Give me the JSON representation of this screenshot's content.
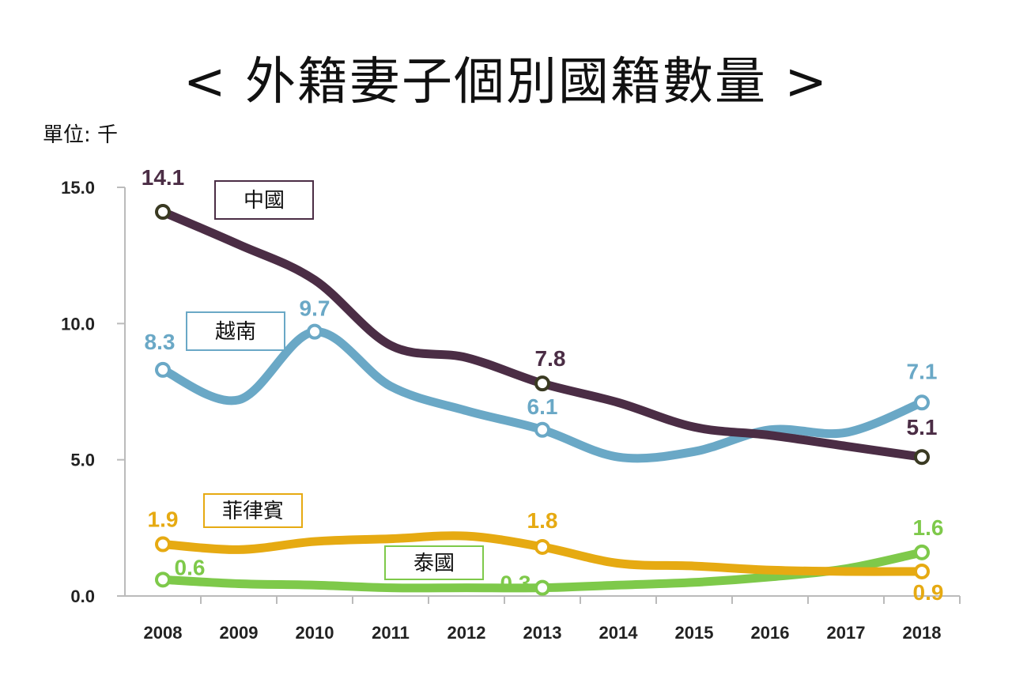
{
  "title": "<  外籍妻子個別國籍數量  >",
  "unit_label": "單位: 千",
  "chart_data": {
    "type": "line",
    "title": "外籍妻子個別國籍數量",
    "ylabel": "單位: 千",
    "xlabel": "",
    "x": [
      "2008",
      "2009",
      "2010",
      "2011",
      "2012",
      "2013",
      "2014",
      "2015",
      "2016",
      "2017",
      "2018"
    ],
    "ylim": [
      0,
      15
    ],
    "yticks": [
      "0.0",
      "5.0",
      "10.0",
      "15.0"
    ],
    "ytick_values": [
      0,
      5,
      10,
      15
    ],
    "grid": false,
    "series": [
      {
        "name": "中國",
        "color": "#4b2d45",
        "values": [
          14.1,
          12.9,
          11.6,
          9.2,
          8.75,
          7.8,
          7.1,
          6.2,
          5.9,
          5.5,
          5.1
        ],
        "labeled_points": [
          {
            "index": 0,
            "label": "14.1"
          },
          {
            "index": 5,
            "label": "7.8"
          },
          {
            "index": 10,
            "label": "5.1"
          }
        ]
      },
      {
        "name": "越南",
        "color": "#6aa8c6",
        "values": [
          8.3,
          7.2,
          9.7,
          7.7,
          6.8,
          6.1,
          5.1,
          5.3,
          6.1,
          6.0,
          7.1
        ],
        "labeled_points": [
          {
            "index": 0,
            "label": "8.3"
          },
          {
            "index": 2,
            "label": "9.7"
          },
          {
            "index": 5,
            "label": "6.1"
          },
          {
            "index": 10,
            "label": "7.1"
          }
        ]
      },
      {
        "name": "菲律賓",
        "color": "#e6aa12",
        "values": [
          1.9,
          1.7,
          2.0,
          2.1,
          2.2,
          1.8,
          1.2,
          1.1,
          0.95,
          0.9,
          0.9
        ],
        "labeled_points": [
          {
            "index": 0,
            "label": "1.9"
          },
          {
            "index": 5,
            "label": "1.8"
          },
          {
            "index": 10,
            "label": "0.9"
          }
        ]
      },
      {
        "name": "泰國",
        "color": "#7ec94a",
        "values": [
          0.6,
          0.45,
          0.4,
          0.3,
          0.3,
          0.3,
          0.4,
          0.5,
          0.7,
          1.0,
          1.6
        ],
        "labeled_points": [
          {
            "index": 0,
            "label": "0.6"
          },
          {
            "index": 5,
            "label": "0.3"
          },
          {
            "index": 10,
            "label": "1.6"
          }
        ]
      }
    ],
    "legend_placement": "inline-labels"
  }
}
